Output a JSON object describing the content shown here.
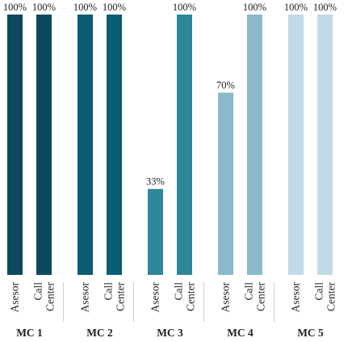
{
  "chart_data": {
    "type": "bar",
    "ylim": [
      0,
      100
    ],
    "value_suffix": "%",
    "groups": [
      {
        "label": "MC 1",
        "color": "#0b4a5e",
        "bars": [
          {
            "category": "Asesor",
            "value": 100,
            "label": "100%"
          },
          {
            "category": "Call Center",
            "value": 100,
            "label": "100%"
          }
        ]
      },
      {
        "label": "MC 2",
        "color": "#0a5d73",
        "bars": [
          {
            "category": "Asesor",
            "value": 100,
            "label": "100%"
          },
          {
            "category": "Call Center",
            "value": 100,
            "label": "100%"
          }
        ]
      },
      {
        "label": "MC 3",
        "color": "#2e8699",
        "bars": [
          {
            "category": "Asesor",
            "value": 33,
            "label": "33%"
          },
          {
            "category": "Call Center",
            "value": 100,
            "label": "100%"
          }
        ]
      },
      {
        "label": "MC 4",
        "color": "#8bb9cb",
        "bars": [
          {
            "category": "Asesor",
            "value": 70,
            "label": "70%"
          },
          {
            "category": "Call Center",
            "value": 100,
            "label": "100%"
          }
        ]
      },
      {
        "label": "MC 5",
        "color": "#c2dae5",
        "bars": [
          {
            "category": "Asesor",
            "value": 100,
            "label": "100%"
          },
          {
            "category": "Call Center",
            "value": 100,
            "label": "100%"
          }
        ]
      }
    ]
  }
}
